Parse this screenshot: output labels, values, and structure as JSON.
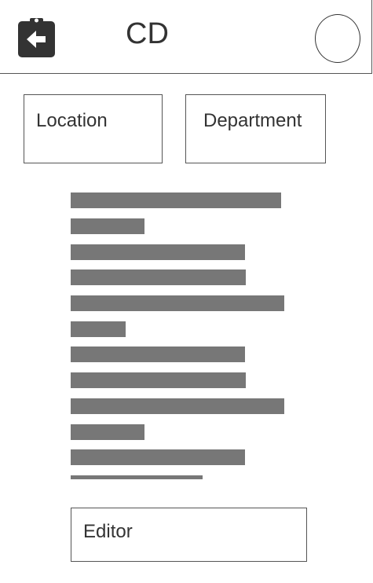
{
  "header": {
    "title": "CD",
    "back_icon": "clipboard-back-arrow-icon",
    "avatar_icon": "circle-avatar"
  },
  "filters": {
    "location_label": "Location",
    "department_label": "Department"
  },
  "content": {
    "placeholder_line_color": "#777777",
    "placeholder_line_count": 12
  },
  "footer": {
    "editor_label": "Editor"
  }
}
